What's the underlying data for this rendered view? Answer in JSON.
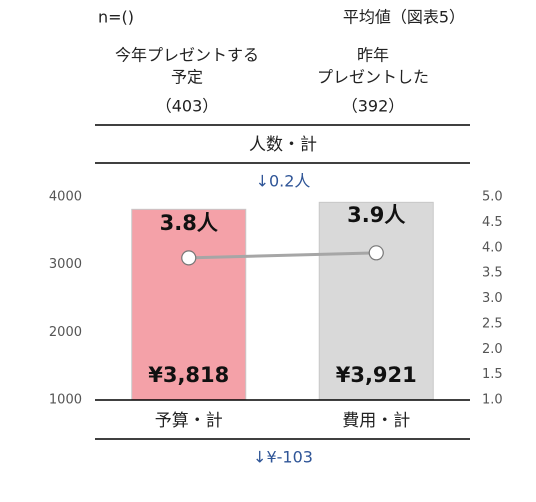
{
  "chart_data": {
    "type": "bar",
    "note": "n=()",
    "subtitle": "平均値（図表5）",
    "column_headers": [
      {
        "lines": [
          "今年プレゼントする",
          "予定"
        ],
        "n": "（403）"
      },
      {
        "lines": [
          "昨年",
          "プレゼントした"
        ],
        "n": "（392）"
      }
    ],
    "title": "人数・計",
    "count_change": "↓0.2人",
    "cost_change": "↓¥-103",
    "categories": [
      "予算・計",
      "費用・計"
    ],
    "series": [
      {
        "type": "bar",
        "colors": [
          "#f4a1a8",
          "#d9d9d9"
        ],
        "values": [
          3818,
          3921
        ],
        "value_labels": [
          "¥3,818",
          "¥3,921"
        ]
      },
      {
        "type": "line",
        "axis": "y2",
        "color": "#a6a6a6",
        "values": [
          3.8,
          3.9
        ],
        "value_labels": [
          "3.8人",
          "3.9人"
        ]
      }
    ],
    "ylim": [
      1000,
      4000
    ],
    "yticks": [
      1000,
      2000,
      3000,
      4000
    ],
    "y2lim": [
      1,
      5
    ],
    "y2ticks": [
      {
        "value": 1,
        "label": "1.0"
      },
      1.5,
      {
        "value": 2,
        "label": "2.0"
      },
      2.5,
      {
        "value": 3,
        "label": "3.0"
      },
      3.5,
      {
        "value": 4,
        "label": "4.0"
      },
      4.5,
      {
        "value": 5,
        "label": "5.0"
      }
    ]
  }
}
